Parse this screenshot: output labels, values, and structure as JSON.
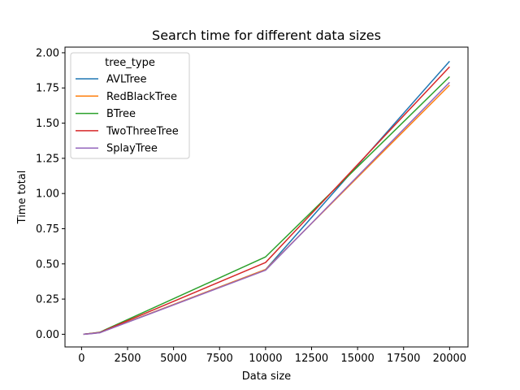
{
  "chart_data": {
    "type": "line",
    "title": "Search time for different data sizes",
    "xlabel": "Data size",
    "ylabel": "Time total",
    "xlim": [
      -900,
      21000
    ],
    "ylim": [
      -0.09,
      2.04
    ],
    "xticks": [
      0,
      2500,
      5000,
      7500,
      10000,
      12500,
      15000,
      17500,
      20000
    ],
    "xtick_labels": [
      "0",
      "2500",
      "5000",
      "7500",
      "10000",
      "12500",
      "15000",
      "17500",
      "20000"
    ],
    "yticks": [
      0.0,
      0.25,
      0.5,
      0.75,
      1.0,
      1.25,
      1.5,
      1.75,
      2.0
    ],
    "ytick_labels": [
      "0.00",
      "0.25",
      "0.50",
      "0.75",
      "1.00",
      "1.25",
      "1.50",
      "1.75",
      "2.00"
    ],
    "grid": false,
    "legend": {
      "title": "tree_type",
      "position": "top-left"
    },
    "x": [
      100,
      500,
      1000,
      10000,
      20000
    ],
    "series": [
      {
        "name": "AVLTree",
        "color": "#1f77b4",
        "values": [
          0.0,
          0.005,
          0.012,
          0.46,
          1.94
        ]
      },
      {
        "name": "RedBlackTree",
        "color": "#ff7f0e",
        "values": [
          0.0,
          0.005,
          0.012,
          0.46,
          1.77
        ]
      },
      {
        "name": "BTree",
        "color": "#2ca02c",
        "values": [
          0.0,
          0.006,
          0.015,
          0.55,
          1.83
        ]
      },
      {
        "name": "TwoThreeTree",
        "color": "#d62728",
        "values": [
          0.0,
          0.005,
          0.013,
          0.51,
          1.9
        ]
      },
      {
        "name": "SplayTree",
        "color": "#9467bd",
        "values": [
          0.0,
          0.004,
          0.011,
          0.455,
          1.79
        ]
      }
    ]
  }
}
